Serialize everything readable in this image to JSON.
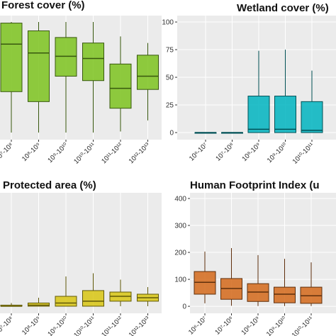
{
  "chart_data": [
    {
      "type": "box",
      "title": "Forest cover (%)",
      "color": "#7dc31f",
      "categories": [
        "10⁷-10⁸",
        "10⁸-10⁹",
        "10⁹-10¹⁰",
        "10¹⁰-10¹¹",
        "10¹¹-10¹²",
        "10¹²-10¹³"
      ],
      "boxes": [
        {
          "min": 0,
          "q1": 37,
          "median": 80,
          "q3": 99,
          "max": 100
        },
        {
          "min": 0,
          "q1": 28,
          "median": 72,
          "q3": 92,
          "max": 100
        },
        {
          "min": 0,
          "q1": 51,
          "median": 69,
          "q3": 86,
          "max": 100
        },
        {
          "min": 0,
          "q1": 47,
          "median": 67,
          "q3": 81,
          "max": 100
        },
        {
          "min": 1,
          "q1": 22,
          "median": 40,
          "q3": 62,
          "max": 87
        },
        {
          "min": 11,
          "q1": 39,
          "median": 51,
          "q3": 70,
          "max": 81
        }
      ],
      "ylim": [
        -6.4,
        105.8
      ],
      "grid": true
    },
    {
      "type": "box",
      "title": "Wetland cover (%)",
      "color": "#00b4bf",
      "categories": [
        "10⁶-10⁷",
        "10⁷-10⁸",
        "10⁸-10⁹",
        "10⁹-10¹⁰",
        "10¹⁰-10¹¹"
      ],
      "boxes": [
        {
          "min": 0,
          "q1": 0,
          "median": 0,
          "q3": 0,
          "max": 0
        },
        {
          "min": 0,
          "q1": 0,
          "median": 0,
          "q3": 0,
          "max": 0
        },
        {
          "min": 0,
          "q1": 0,
          "median": 3,
          "q3": 33,
          "max": 74
        },
        {
          "min": 0,
          "q1": 0,
          "median": 3,
          "q3": 33,
          "max": 75
        },
        {
          "min": 0,
          "q1": 0,
          "median": 2,
          "q3": 28,
          "max": 56
        }
      ],
      "ylim": [
        -6.4,
        105.8
      ],
      "yticks": [
        0,
        25,
        50,
        75,
        100
      ],
      "grid": true
    },
    {
      "type": "box",
      "title": "Protected area (%)",
      "color": "#d8c612",
      "categories": [
        "10⁷-10⁸",
        "10⁸-10⁹",
        "10⁹-10¹⁰",
        "10¹⁰-10¹¹",
        "10¹¹-10¹²",
        "10¹²-10¹³"
      ],
      "boxes": [
        {
          "min": 0,
          "q1": 0,
          "median": 0,
          "q3": 1,
          "max": 3
        },
        {
          "min": 0,
          "q1": 0,
          "median": 1,
          "q3": 3,
          "max": 8
        },
        {
          "min": 0,
          "q1": 0,
          "median": 3,
          "q3": 9.3,
          "max": 28
        },
        {
          "min": 0,
          "q1": 0,
          "median": 4.7,
          "q3": 14.7,
          "max": 31
        },
        {
          "min": 0,
          "q1": 4.7,
          "median": 9.3,
          "q3": 13.3,
          "max": 25
        },
        {
          "min": 0,
          "q1": 4.7,
          "median": 8,
          "q3": 11.3,
          "max": 18
        }
      ],
      "ylim": [
        -6.7,
        106.7
      ],
      "grid": true
    },
    {
      "type": "box",
      "title": "Human Footprint Index (u",
      "color": "#d4681a",
      "categories": [
        "10⁶-10⁷",
        "10⁷-10⁸",
        "10⁸-10⁹",
        "10⁹-10¹⁰",
        "10¹⁰-10¹¹"
      ],
      "boxes": [
        {
          "min": 11,
          "q1": 45,
          "median": 89,
          "q3": 129,
          "max": 203
        },
        {
          "min": 2,
          "q1": 26,
          "median": 66,
          "q3": 103,
          "max": 216
        },
        {
          "min": 1,
          "q1": 18,
          "median": 53,
          "q3": 84,
          "max": 190
        },
        {
          "min": 1,
          "q1": 13,
          "median": 45,
          "q3": 71,
          "max": 176
        },
        {
          "min": 1,
          "q1": 11,
          "median": 39,
          "q3": 71,
          "max": 163
        }
      ],
      "ylim": [
        -26,
        421
      ],
      "yticks": [
        0,
        100,
        200,
        300,
        400
      ],
      "grid": true
    }
  ]
}
